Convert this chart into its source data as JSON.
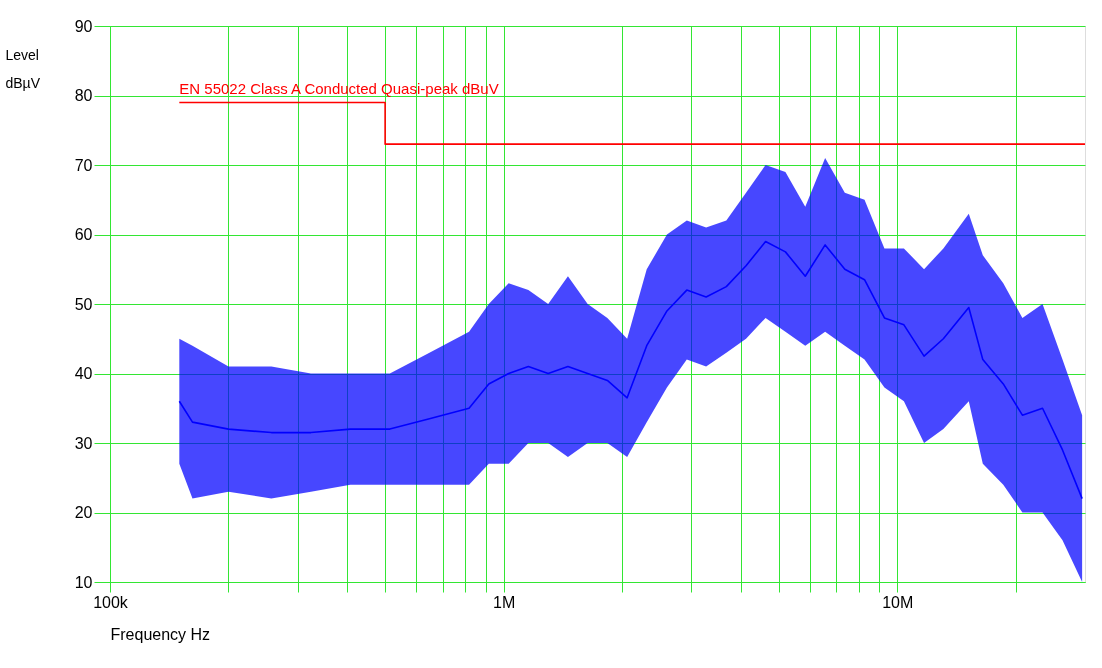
{
  "chart_data": {
    "type": "line",
    "xlabel": "Frequency  Hz",
    "ylabel": "Level dBµV",
    "log": "x",
    "grid": true,
    "xlim": [
      100000,
      30000000
    ],
    "ylim": [
      10,
      90
    ],
    "xticks": [
      {
        "value": 100000,
        "label": "100k"
      },
      {
        "value": 200000,
        "label": null
      },
      {
        "value": 300000,
        "label": null
      },
      {
        "value": 400000,
        "label": null
      },
      {
        "value": 500000,
        "label": null
      },
      {
        "value": 600000,
        "label": null
      },
      {
        "value": 700000,
        "label": null
      },
      {
        "value": 800000,
        "label": null
      },
      {
        "value": 900000,
        "label": null
      },
      {
        "value": 1000000,
        "label": "1M"
      },
      {
        "value": 2000000,
        "label": null
      },
      {
        "value": 3000000,
        "label": null
      },
      {
        "value": 4000000,
        "label": null
      },
      {
        "value": 5000000,
        "label": null
      },
      {
        "value": 6000000,
        "label": null
      },
      {
        "value": 7000000,
        "label": null
      },
      {
        "value": 8000000,
        "label": null
      },
      {
        "value": 9000000,
        "label": null
      },
      {
        "value": 10000000,
        "label": "10M"
      },
      {
        "value": 20000000,
        "label": null
      }
    ],
    "yticks": [
      10,
      20,
      30,
      40,
      50,
      60,
      70,
      80,
      90
    ],
    "series": [
      {
        "type": "line",
        "color": "#0000ff",
        "x": [
          150000,
          162000,
          200000,
          257000,
          324000,
          408000,
          514000,
          648000,
          817000,
          917000,
          1030000,
          1156000,
          1298000,
          1457000,
          1635000,
          1835000,
          2060000,
          2310000,
          2600000,
          2920000,
          3270000,
          3680000,
          4130000,
          4630000,
          5200000,
          5840000,
          6560000,
          7360000,
          8260000,
          9280000,
          10400000,
          11700000,
          13100000,
          15200000,
          16500000,
          18600000,
          20800000,
          23400000,
          26300000,
          29500000
        ],
        "values": [
          36,
          33,
          32,
          31.5,
          31.5,
          32,
          32,
          33.5,
          35,
          38.5,
          40,
          41,
          40,
          41,
          40,
          39,
          36.5,
          44,
          49,
          52,
          51,
          52.5,
          55.5,
          59,
          57.5,
          54,
          58.5,
          55,
          53.5,
          48,
          47,
          42.5,
          45,
          49.5,
          42,
          38.5,
          34,
          35,
          29,
          22
        ],
        "upper": [
          45,
          44,
          41,
          41,
          40,
          40,
          40,
          43,
          46,
          50,
          53,
          52,
          50,
          54,
          50,
          48,
          45,
          55,
          60,
          62,
          61,
          62,
          66,
          70,
          69,
          64,
          71,
          66,
          65,
          58,
          58,
          55,
          58,
          63,
          57,
          53,
          48,
          50,
          42,
          34
        ],
        "lower": [
          27,
          22,
          23,
          22,
          23,
          24,
          24,
          24,
          24,
          27,
          27,
          30,
          30,
          28,
          30,
          30,
          28,
          33,
          38,
          42,
          41,
          43,
          45,
          48,
          46,
          44,
          46,
          44,
          42,
          38,
          36,
          30,
          32,
          36,
          27,
          24,
          20,
          20,
          16,
          10
        ]
      },
      {
        "type": "line",
        "name": "EN 55022 Class A Conducted Quasi-peak dBuV",
        "color": "#ff0000",
        "x": [
          150000,
          500000,
          500000,
          30000000
        ],
        "values": [
          79,
          79,
          73,
          73
        ]
      }
    ]
  }
}
